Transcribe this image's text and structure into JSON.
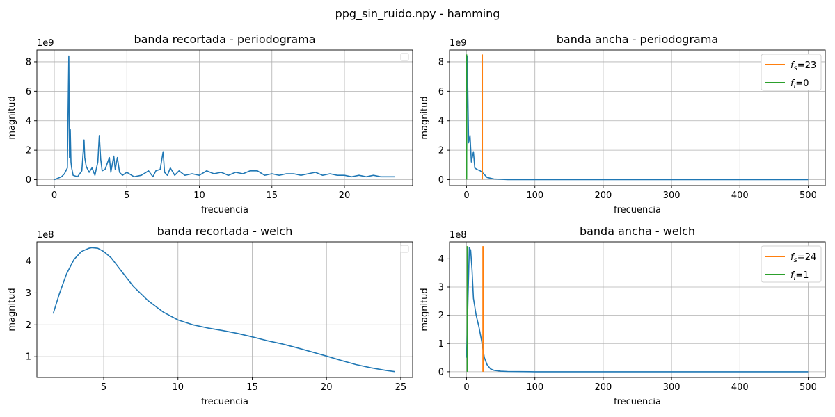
{
  "figure_title": "ppg_sin_ruido.npy - hamming",
  "colors": {
    "series": "#1f77b4",
    "fs_line": "#ff7f0e",
    "fi_line": "#2ca02c",
    "grid": "#b0b0b0"
  },
  "chart_data": [
    {
      "type": "line",
      "title": "banda recortada - periodograma",
      "xlabel": "frecuencia",
      "ylabel": "magnitud",
      "y_multiplier": "1e9",
      "xlim": [
        -1.2,
        24.7
      ],
      "ylim": [
        -0.4,
        8.8
      ],
      "xticks": [
        0,
        5,
        10,
        15,
        20
      ],
      "yticks": [
        0,
        2,
        4,
        6,
        8
      ],
      "grid": true,
      "legend": "top-right (empty)",
      "series": [
        {
          "x": [
            0,
            0.5,
            0.7,
            0.9,
            1.0,
            1.05,
            1.1,
            1.15,
            1.2,
            1.3,
            1.6,
            1.9,
            2.05,
            2.1,
            2.2,
            2.4,
            2.6,
            2.8,
            3.0,
            3.1,
            3.2,
            3.3,
            3.5,
            3.8,
            3.9,
            4.1,
            4.2,
            4.35,
            4.5,
            4.7,
            5.0,
            5.5,
            6.0,
            6.5,
            6.8,
            7.0,
            7.3,
            7.5,
            7.6,
            7.8,
            8.0,
            8.3,
            8.6,
            9.0,
            9.5,
            10.0,
            10.5,
            11.0,
            11.5,
            12.0,
            12.5,
            13.0,
            13.5,
            14.0,
            14.5,
            15.0,
            15.5,
            16.0,
            16.5,
            17.0,
            17.5,
            18.0,
            18.5,
            19.0,
            19.5,
            20.0,
            20.5,
            21.0,
            21.5,
            22.0,
            22.5,
            23.0,
            23.5
          ],
          "y": [
            0.0,
            0.2,
            0.4,
            0.8,
            8.4,
            1.5,
            3.4,
            1.2,
            0.8,
            0.3,
            0.2,
            0.6,
            2.7,
            1.5,
            0.9,
            0.5,
            0.8,
            0.3,
            1.2,
            3.0,
            1.4,
            0.6,
            0.7,
            1.5,
            0.5,
            1.6,
            0.7,
            1.5,
            0.5,
            0.3,
            0.5,
            0.2,
            0.3,
            0.6,
            0.2,
            0.6,
            0.7,
            1.9,
            0.5,
            0.3,
            0.8,
            0.3,
            0.6,
            0.3,
            0.4,
            0.3,
            0.6,
            0.4,
            0.5,
            0.3,
            0.5,
            0.4,
            0.6,
            0.6,
            0.3,
            0.4,
            0.3,
            0.4,
            0.4,
            0.3,
            0.4,
            0.5,
            0.3,
            0.4,
            0.3,
            0.3,
            0.2,
            0.3,
            0.2,
            0.3,
            0.2,
            0.2,
            0.2
          ]
        }
      ]
    },
    {
      "type": "line",
      "title": "banda ancha - periodograma",
      "xlabel": "frecuencia",
      "ylabel": "magnitud",
      "y_multiplier": "1e9",
      "xlim": [
        -25,
        525
      ],
      "ylim": [
        -0.4,
        8.8
      ],
      "xticks": [
        0,
        100,
        200,
        300,
        400,
        500
      ],
      "yticks": [
        0,
        2,
        4,
        6,
        8
      ],
      "grid": true,
      "legend": "top-right",
      "series": [
        {
          "x": [
            0,
            1,
            3,
            5,
            7,
            10,
            12,
            15,
            20,
            25,
            30,
            40,
            60,
            100,
            200,
            300,
            400,
            500
          ],
          "y": [
            0.2,
            8.4,
            2.5,
            3.0,
            1.2,
            1.9,
            0.8,
            0.7,
            0.6,
            0.4,
            0.15,
            0.05,
            0.0,
            0.0,
            0.0,
            0.0,
            0.0,
            0.0
          ]
        }
      ],
      "vlines": [
        {
          "label": "f_s=23",
          "x": 23,
          "y_range": [
            0,
            8.5
          ],
          "color": "#ff7f0e"
        },
        {
          "label": "f_i=0",
          "x": 0,
          "y_range": [
            0,
            8.5
          ],
          "color": "#2ca02c"
        }
      ]
    },
    {
      "type": "line",
      "title": "banda recortada - welch",
      "xlabel": "frecuencia",
      "ylabel": "magnitud",
      "y_multiplier": "1e8",
      "xlim": [
        0.5,
        25.8
      ],
      "ylim": [
        0.35,
        4.6
      ],
      "xticks": [
        5,
        10,
        15,
        20,
        25
      ],
      "yticks": [
        1,
        2,
        3,
        4
      ],
      "grid": true,
      "legend": "top-right (empty)",
      "series": [
        {
          "x": [
            1.6,
            2.0,
            2.5,
            3.0,
            3.5,
            4.0,
            4.2,
            4.6,
            5.0,
            5.5,
            6.0,
            7.0,
            8.0,
            9.0,
            10.0,
            11.0,
            12.0,
            13.0,
            14.0,
            15.0,
            16.0,
            17.0,
            18.0,
            19.0,
            20.0,
            21.0,
            22.0,
            23.0,
            24.0,
            24.6
          ],
          "y": [
            2.35,
            2.95,
            3.6,
            4.05,
            4.3,
            4.4,
            4.42,
            4.4,
            4.3,
            4.1,
            3.8,
            3.2,
            2.75,
            2.4,
            2.15,
            2.0,
            1.9,
            1.82,
            1.73,
            1.62,
            1.5,
            1.4,
            1.28,
            1.15,
            1.02,
            0.88,
            0.75,
            0.65,
            0.57,
            0.53
          ]
        }
      ]
    },
    {
      "type": "line",
      "title": "banda ancha - welch",
      "xlabel": "frecuencia",
      "ylabel": "magnitud",
      "y_multiplier": "1e8",
      "xlim": [
        -25,
        525
      ],
      "ylim": [
        -0.2,
        4.6
      ],
      "xticks": [
        0,
        100,
        200,
        300,
        400,
        500
      ],
      "yticks": [
        0,
        1,
        2,
        3,
        4
      ],
      "grid": true,
      "legend": "top-right",
      "series": [
        {
          "x": [
            0,
            2,
            4,
            6,
            8,
            10,
            14,
            18,
            22,
            26,
            30,
            35,
            40,
            50,
            60,
            100,
            200,
            300,
            400,
            500
          ],
          "y": [
            0.5,
            2.5,
            4.4,
            4.3,
            3.6,
            2.6,
            2.0,
            1.6,
            1.1,
            0.5,
            0.25,
            0.1,
            0.05,
            0.02,
            0.01,
            0.0,
            0.0,
            0.0,
            0.0,
            0.0
          ]
        }
      ],
      "vlines": [
        {
          "label": "f_s=24",
          "x": 24,
          "y_range": [
            0,
            4.45
          ],
          "color": "#ff7f0e"
        },
        {
          "label": "f_i=1",
          "x": 1,
          "y_range": [
            0,
            4.45
          ],
          "color": "#2ca02c"
        }
      ]
    }
  ]
}
